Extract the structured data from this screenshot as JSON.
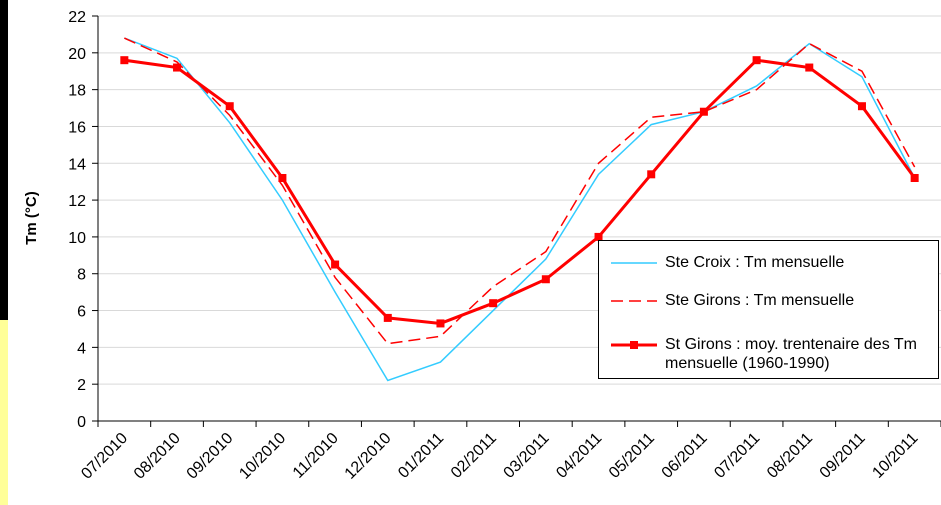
{
  "chart_data": {
    "type": "line",
    "y_label": "Tm (°C)",
    "categories": [
      "07/2010",
      "08/2010",
      "09/2010",
      "10/2010",
      "11/2010",
      "12/2010",
      "01/2011",
      "02/2011",
      "03/2011",
      "04/2011",
      "05/2011",
      "06/2011",
      "07/2011",
      "08/2011",
      "09/2011",
      "10/2011"
    ],
    "series": [
      {
        "name": "Ste Croix : Tm mensuelle",
        "color": "#33ccff",
        "style": "solid",
        "values": [
          20.8,
          19.7,
          16.2,
          12.0,
          7.0,
          2.2,
          3.2,
          6.0,
          8.8,
          13.4,
          16.1,
          16.8,
          18.2,
          20.5,
          18.7,
          13.2
        ]
      },
      {
        "name": "Ste Girons : Tm mensuelle",
        "color": "#ff0000",
        "style": "dashed",
        "values": [
          20.8,
          19.5,
          16.6,
          12.8,
          7.8,
          4.2,
          4.6,
          7.3,
          9.2,
          14.0,
          16.5,
          16.8,
          18.0,
          20.5,
          19.0,
          13.8
        ]
      },
      {
        "name": "St Girons : moy. trentenaire des Tm mensuelle (1960-1990)",
        "color": "#ff0000",
        "style": "solid",
        "marker": "square",
        "values": [
          19.6,
          19.2,
          17.1,
          13.2,
          8.5,
          5.6,
          5.3,
          6.4,
          7.7,
          10.0,
          13.4,
          16.8,
          19.6,
          19.2,
          17.1,
          13.2
        ]
      }
    ],
    "ylim": [
      0,
      22
    ],
    "yticks": [
      0,
      2,
      4,
      6,
      8,
      10,
      12,
      14,
      16,
      18,
      20,
      22
    ],
    "grid": true
  }
}
